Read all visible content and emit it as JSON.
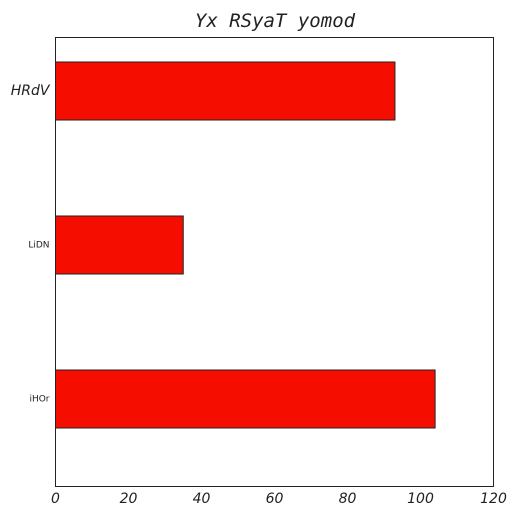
{
  "chart_data": {
    "type": "bar",
    "orientation": "horizontal",
    "title": "Yx RSyaT yomod",
    "categories": [
      "HRdV",
      "LiDN",
      "iHOr"
    ],
    "values": [
      93,
      35,
      104
    ],
    "xlabel": "",
    "ylabel": "",
    "xlim": [
      0,
      120
    ],
    "xticks": [
      0,
      20,
      40,
      60,
      80,
      100,
      120
    ],
    "grid": false,
    "bar_color": "#f50d00",
    "edge_color": "#222222"
  }
}
